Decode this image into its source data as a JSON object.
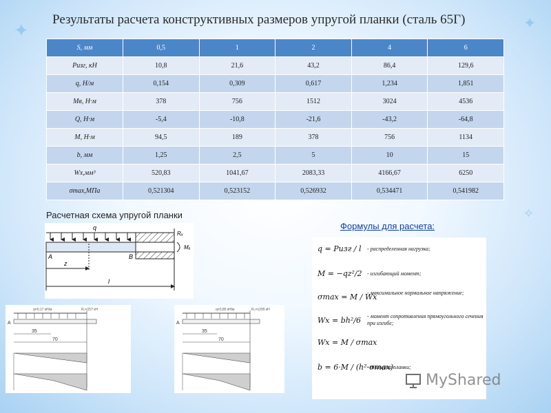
{
  "title": "Результаты расчета конструктивных размеров упругой планки (сталь 65Г)",
  "table": {
    "rows": [
      {
        "label": "S, мм",
        "values": [
          "0,5",
          "1",
          "2",
          "4",
          "6"
        ]
      },
      {
        "label": "Pизг, кН",
        "values": [
          "10,8",
          "21,6",
          "43,2",
          "86,4",
          "129,6"
        ]
      },
      {
        "label": "q, Н/м",
        "values": [
          "0,154",
          "0,309",
          "0,617",
          "1,234",
          "1,851"
        ]
      },
      {
        "label": "Мв, Н·м",
        "values": [
          "378",
          "756",
          "1512",
          "3024",
          "4536"
        ]
      },
      {
        "label": "Q, Н·м",
        "values": [
          "-5,4",
          "-10,8",
          "-21,6",
          "-43,2",
          "-64,8"
        ]
      },
      {
        "label": "М, Н·м",
        "values": [
          "94,5",
          "189",
          "378",
          "756",
          "1134"
        ]
      },
      {
        "label": "b, мм",
        "values": [
          "1,25",
          "2,5",
          "5",
          "10",
          "15"
        ]
      },
      {
        "label": "Wx,мм³",
        "values": [
          "520,83",
          "1041,67",
          "2083,33",
          "4166,67",
          "6250"
        ]
      },
      {
        "label": "σmax,МПа",
        "values": [
          "0,521304",
          "0,523152",
          "0,526932",
          "0,534471",
          "0,541982"
        ]
      }
    ]
  },
  "scheme": {
    "label": "Расчетная схема упругой планки",
    "q": "q",
    "Ra": "Rₐ",
    "Ma": "Mₐ",
    "A": "A",
    "B": "B",
    "z": "z",
    "l": "l"
  },
  "diagrams": {
    "left": {
      "A": "A",
      "dim1": "35",
      "dim2": "70",
      "top1": "q=0,17 кН/м",
      "top2": "R₂=157 кН"
    },
    "right": {
      "A": "A",
      "dim1": "35",
      "dim2": "70",
      "top1": "q=0,85 кН/м",
      "top2": "R₂=1295 кН"
    }
  },
  "formulas": {
    "label": "Формулы для расчета:",
    "items": [
      {
        "expr": "q = Pизг / l",
        "desc": "- распределенная нагрузка;"
      },
      {
        "expr": "M = −qz²/2",
        "desc": "- изгибающий момент;"
      },
      {
        "expr": "σmax = M / Wx",
        "desc": "- максимальное нормальное напряжение;"
      },
      {
        "expr": "Wx = bh²/6",
        "desc": "- момент сопротивления прямоугольного сечения при изгибе;"
      },
      {
        "expr": "Wx = M / σmax",
        "desc": ""
      },
      {
        "expr": "b = 6·M / (h²·σmax)",
        "desc": "- толщина планки;"
      }
    ]
  },
  "watermark": "MyShared"
}
